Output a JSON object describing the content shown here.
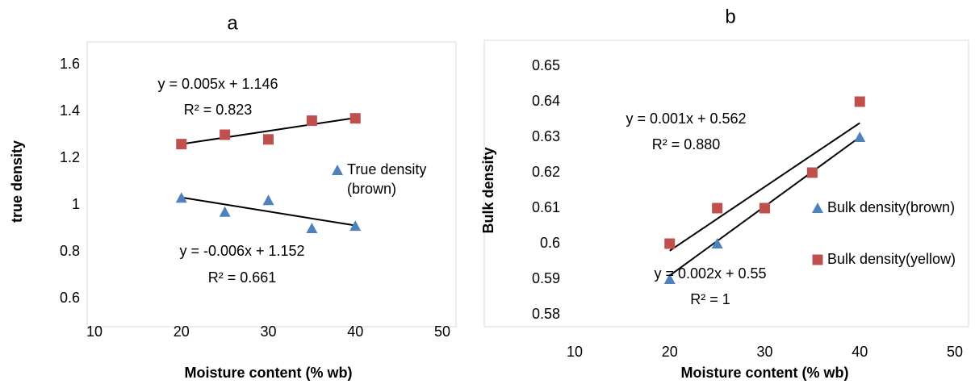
{
  "chart_data": [
    {
      "type": "scatter",
      "title": "a",
      "xlabel": "Moisture content (% wb)",
      "ylabel": "true density",
      "xlim": [
        10,
        50
      ],
      "xticks": [
        10,
        20,
        30,
        40,
        50
      ],
      "ylim": [
        0.6,
        1.6
      ],
      "yticks": [
        0.6,
        0.8,
        1,
        1.2,
        1.4,
        1.6
      ],
      "series": [
        {
          "name": "True density (brown)",
          "color": "#4f81bd",
          "marker": "triangle",
          "x": [
            20,
            25,
            30,
            35,
            40
          ],
          "values": [
            1.03,
            0.97,
            1.02,
            0.9,
            0.91
          ],
          "trendline": {
            "x": [
              20,
              40
            ],
            "y": [
              1.032,
              0.912
            ]
          }
        },
        {
          "color": "#c0504d",
          "marker": "square",
          "x": [
            20,
            25,
            30,
            35,
            40
          ],
          "values": [
            1.26,
            1.3,
            1.28,
            1.36,
            1.37
          ],
          "trendline": {
            "x": [
              20,
              40
            ],
            "y": [
              1.26,
              1.372
            ]
          }
        }
      ],
      "annotations": [
        "y = 0.005x + 1.146",
        "R² = 0.823",
        "y = -0.006x + 1.152",
        "R² = 0.661"
      ]
    },
    {
      "type": "scatter",
      "title": "b",
      "xlabel": "Moisture content (% wb)",
      "ylabel": "Bulk density",
      "xlim": [
        10,
        50
      ],
      "xticks": [
        10,
        20,
        30,
        40,
        50
      ],
      "ylim": [
        0.58,
        0.65
      ],
      "yticks": [
        0.58,
        0.59,
        0.6,
        0.61,
        0.62,
        0.63,
        0.64,
        0.65
      ],
      "series": [
        {
          "name": "Bulk density(brown)",
          "color": "#4f81bd",
          "marker": "triangle",
          "x": [
            20,
            25,
            30,
            35,
            40
          ],
          "values": [
            0.59,
            0.6,
            0.61,
            0.62,
            0.63
          ],
          "trendline": {
            "x": [
              20,
              40
            ],
            "y": [
              0.591,
              0.63
            ]
          }
        },
        {
          "name": "Bulk density(yellow)",
          "color": "#c0504d",
          "marker": "square",
          "x": [
            20,
            25,
            30,
            35,
            40
          ],
          "values": [
            0.6,
            0.61,
            0.61,
            0.62,
            0.64
          ],
          "trendline": {
            "x": [
              20,
              40
            ],
            "y": [
              0.598,
              0.634
            ]
          }
        }
      ],
      "annotations": [
        "y = 0.001x + 0.562",
        "R² = 0.880",
        "y = 0.002x + 0.55",
        "R² = 1"
      ]
    }
  ]
}
